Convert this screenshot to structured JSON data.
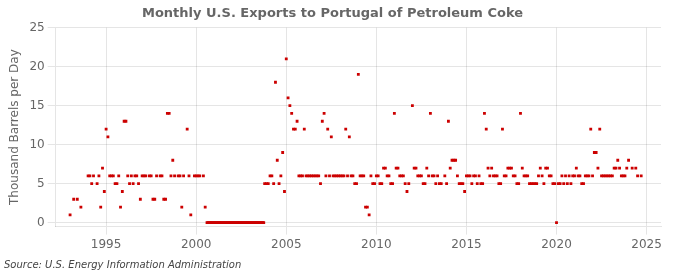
{
  "chart_data": {
    "type": "scatter",
    "title": "Monthly U.S. Exports to Portugal of Petroleum Coke",
    "y_label": "Thousand Barrels per Day",
    "source": "Source: U.S. Energy Information Administration",
    "color": "#cc0000",
    "marker": "square",
    "grid": true,
    "xlim": [
      1992.2,
      2025.8
    ],
    "xticks": [
      1995,
      2000,
      2005,
      2010,
      2015,
      2020,
      2025
    ],
    "ylim": [
      -0.5,
      25
    ],
    "yticks": [
      0,
      5,
      10,
      15,
      20,
      25
    ],
    "x": [
      1993.0,
      1993.2,
      1993.4,
      1993.6,
      1994.0,
      1994.1,
      1994.2,
      1994.3,
      1994.5,
      1994.6,
      1994.7,
      1994.8,
      1994.9,
      1995.0,
      1995.1,
      1995.2,
      1995.3,
      1995.4,
      1995.5,
      1995.6,
      1995.7,
      1995.8,
      1995.9,
      1996.0,
      1996.1,
      1996.2,
      1996.3,
      1996.4,
      1996.5,
      1996.6,
      1996.7,
      1996.8,
      1996.9,
      1997.0,
      1997.1,
      1997.2,
      1997.4,
      1997.5,
      1997.6,
      1997.7,
      1997.8,
      1998.0,
      1998.1,
      1998.2,
      1998.3,
      1998.4,
      1998.5,
      1998.6,
      1998.7,
      1998.8,
      1999.0,
      1999.1,
      1999.2,
      1999.3,
      1999.5,
      1999.6,
      1999.7,
      1999.9,
      2000.0,
      2000.1,
      2000.2,
      2000.4,
      2000.5,
      2000.6,
      2000.65,
      2000.7,
      2000.75,
      2000.8,
      2000.85,
      2000.9,
      2000.95,
      2001.0,
      2001.05,
      2001.1,
      2001.15,
      2001.2,
      2001.25,
      2001.3,
      2001.35,
      2001.4,
      2001.45,
      2001.5,
      2001.55,
      2001.6,
      2001.65,
      2001.7,
      2001.75,
      2001.8,
      2001.85,
      2001.9,
      2001.95,
      2002.0,
      2002.05,
      2002.1,
      2002.15,
      2002.2,
      2002.25,
      2002.3,
      2002.35,
      2002.4,
      2002.45,
      2002.5,
      2002.55,
      2002.6,
      2002.65,
      2002.7,
      2002.75,
      2002.8,
      2002.85,
      2002.9,
      2002.95,
      2003.0,
      2003.05,
      2003.1,
      2003.15,
      2003.2,
      2003.25,
      2003.3,
      2003.35,
      2003.4,
      2003.45,
      2003.5,
      2003.55,
      2003.6,
      2003.65,
      2003.7,
      2003.75,
      2003.8,
      2003.9,
      2004.0,
      2004.1,
      2004.2,
      2004.3,
      2004.4,
      2004.5,
      2004.6,
      2004.7,
      2004.8,
      2004.9,
      2005.0,
      2005.1,
      2005.2,
      2005.3,
      2005.4,
      2005.5,
      2005.6,
      2005.7,
      2005.8,
      2005.9,
      2006.0,
      2006.1,
      2006.2,
      2006.3,
      2006.4,
      2006.5,
      2006.6,
      2006.7,
      2006.8,
      2006.9,
      2007.0,
      2007.1,
      2007.2,
      2007.3,
      2007.4,
      2007.5,
      2007.6,
      2007.7,
      2007.8,
      2007.9,
      2008.0,
      2008.1,
      2008.2,
      2008.3,
      2008.4,
      2008.5,
      2008.6,
      2008.7,
      2008.8,
      2008.9,
      2009.0,
      2009.1,
      2009.2,
      2009.3,
      2009.4,
      2009.5,
      2009.6,
      2009.7,
      2009.8,
      2009.9,
      2010.0,
      2010.1,
      2010.2,
      2010.3,
      2010.4,
      2010.5,
      2010.6,
      2010.7,
      2010.8,
      2010.9,
      2011.0,
      2011.1,
      2011.2,
      2011.3,
      2011.4,
      2011.5,
      2011.6,
      2011.7,
      2011.8,
      2012.0,
      2012.1,
      2012.2,
      2012.3,
      2012.4,
      2012.5,
      2012.6,
      2012.7,
      2012.8,
      2012.9,
      2013.0,
      2013.1,
      2013.2,
      2013.3,
      2013.4,
      2013.5,
      2013.6,
      2013.8,
      2013.9,
      2014.0,
      2014.1,
      2014.2,
      2014.3,
      2014.4,
      2014.5,
      2014.6,
      2014.7,
      2014.8,
      2014.9,
      2015.0,
      2015.1,
      2015.2,
      2015.3,
      2015.4,
      2015.5,
      2015.6,
      2015.7,
      2015.8,
      2015.9,
      2016.0,
      2016.1,
      2016.2,
      2016.3,
      2016.4,
      2016.5,
      2016.6,
      2016.7,
      2016.8,
      2016.9,
      2017.0,
      2017.1,
      2017.2,
      2017.3,
      2017.4,
      2017.5,
      2017.6,
      2017.7,
      2017.8,
      2017.9,
      2018.0,
      2018.1,
      2018.2,
      2018.3,
      2018.4,
      2018.5,
      2018.6,
      2018.7,
      2018.8,
      2018.9,
      2019.0,
      2019.1,
      2019.2,
      2019.3,
      2019.4,
      2019.5,
      2019.6,
      2019.7,
      2019.8,
      2019.9,
      2020.0,
      2020.1,
      2020.2,
      2020.3,
      2020.4,
      2020.5,
      2020.6,
      2020.7,
      2020.8,
      2020.9,
      2021.0,
      2021.1,
      2021.2,
      2021.3,
      2021.4,
      2021.5,
      2021.6,
      2021.7,
      2021.8,
      2021.9,
      2022.0,
      2022.1,
      2022.2,
      2022.3,
      2022.4,
      2022.5,
      2022.6,
      2022.7,
      2022.8,
      2022.9,
      2023.0,
      2023.1,
      2023.2,
      2023.3,
      2023.4,
      2023.5,
      2023.6,
      2023.7,
      2023.8,
      2023.9,
      2024.0,
      2024.2,
      2024.4,
      2024.5,
      2024.7
    ],
    "values": [
      1.0,
      3.0,
      3.0,
      2.0,
      6.0,
      6.0,
      5.0,
      6.0,
      5.0,
      6.0,
      2.0,
      7.0,
      4.0,
      12.0,
      11.0,
      6.0,
      6.0,
      6.0,
      5.0,
      5.0,
      6.0,
      2.0,
      4.0,
      13.0,
      13.0,
      6.0,
      5.0,
      6.0,
      5.0,
      6.0,
      6.0,
      5.0,
      3.0,
      6.0,
      6.0,
      6.0,
      6.0,
      6.0,
      3.0,
      3.0,
      6.0,
      6.0,
      6.0,
      3.0,
      3.0,
      14.0,
      14.0,
      6.0,
      8.0,
      6.0,
      6.0,
      6.0,
      2.0,
      6.0,
      12.0,
      6.0,
      1.0,
      6.0,
      6.0,
      6.0,
      6.0,
      6.0,
      2.0,
      0.0,
      0.0,
      0.0,
      0.0,
      0.0,
      0.0,
      0.0,
      0.0,
      0.0,
      0.0,
      0.0,
      0.0,
      0.0,
      0.0,
      0.0,
      0.0,
      0.0,
      0.0,
      0.0,
      0.0,
      0.0,
      0.0,
      0.0,
      0.0,
      0.0,
      0.0,
      0.0,
      0.0,
      0.0,
      0.0,
      0.0,
      0.0,
      0.0,
      0.0,
      0.0,
      0.0,
      0.0,
      0.0,
      0.0,
      0.0,
      0.0,
      0.0,
      0.0,
      0.0,
      0.0,
      0.0,
      0.0,
      0.0,
      0.0,
      0.0,
      0.0,
      0.0,
      0.0,
      0.0,
      0.0,
      0.0,
      0.0,
      0.0,
      0.0,
      0.0,
      0.0,
      0.0,
      0.0,
      0.0,
      5.0,
      5.0,
      5.0,
      6.0,
      6.0,
      5.0,
      18.0,
      8.0,
      5.0,
      6.0,
      9.0,
      4.0,
      21.0,
      16.0,
      15.0,
      14.0,
      12.0,
      12.0,
      13.0,
      6.0,
      6.0,
      6.0,
      12.0,
      6.0,
      6.0,
      6.0,
      6.0,
      6.0,
      6.0,
      6.0,
      6.0,
      5.0,
      13.0,
      14.0,
      6.0,
      12.0,
      6.0,
      11.0,
      6.0,
      6.0,
      6.0,
      6.0,
      6.0,
      6.0,
      6.0,
      12.0,
      6.0,
      11.0,
      6.0,
      6.0,
      5.0,
      5.0,
      19.0,
      6.0,
      6.0,
      6.0,
      2.0,
      2.0,
      1.0,
      6.0,
      5.0,
      5.0,
      6.0,
      6.0,
      5.0,
      5.0,
      7.0,
      7.0,
      6.0,
      6.0,
      5.0,
      5.0,
      14.0,
      7.0,
      7.0,
      6.0,
      6.0,
      6.0,
      5.0,
      4.0,
      5.0,
      15.0,
      7.0,
      7.0,
      6.0,
      6.0,
      6.0,
      5.0,
      5.0,
      7.0,
      6.0,
      14.0,
      6.0,
      6.0,
      5.0,
      6.0,
      5.0,
      5.0,
      6.0,
      5.0,
      13.0,
      7.0,
      8.0,
      8.0,
      8.0,
      6.0,
      5.0,
      5.0,
      5.0,
      4.0,
      6.0,
      6.0,
      6.0,
      5.0,
      6.0,
      6.0,
      5.0,
      6.0,
      5.0,
      5.0,
      14.0,
      12.0,
      7.0,
      6.0,
      7.0,
      6.0,
      6.0,
      6.0,
      5.0,
      5.0,
      12.0,
      6.0,
      6.0,
      7.0,
      7.0,
      7.0,
      6.0,
      6.0,
      5.0,
      5.0,
      14.0,
      7.0,
      6.0,
      6.0,
      6.0,
      5.0,
      5.0,
      5.0,
      5.0,
      5.0,
      6.0,
      7.0,
      6.0,
      5.0,
      7.0,
      7.0,
      6.0,
      6.0,
      5.0,
      5.0,
      0.0,
      5.0,
      5.0,
      6.0,
      5.0,
      6.0,
      5.0,
      6.0,
      5.0,
      6.0,
      6.0,
      7.0,
      6.0,
      6.0,
      5.0,
      5.0,
      6.0,
      6.0,
      6.0,
      12.0,
      6.0,
      9.0,
      9.0,
      7.0,
      12.0,
      6.0,
      6.0,
      6.0,
      6.0,
      6.0,
      6.0,
      6.0,
      7.0,
      7.0,
      8.0,
      7.0,
      6.0,
      6.0,
      6.0,
      7.0,
      8.0,
      7.0,
      7.0,
      6.0,
      6.0
    ]
  }
}
